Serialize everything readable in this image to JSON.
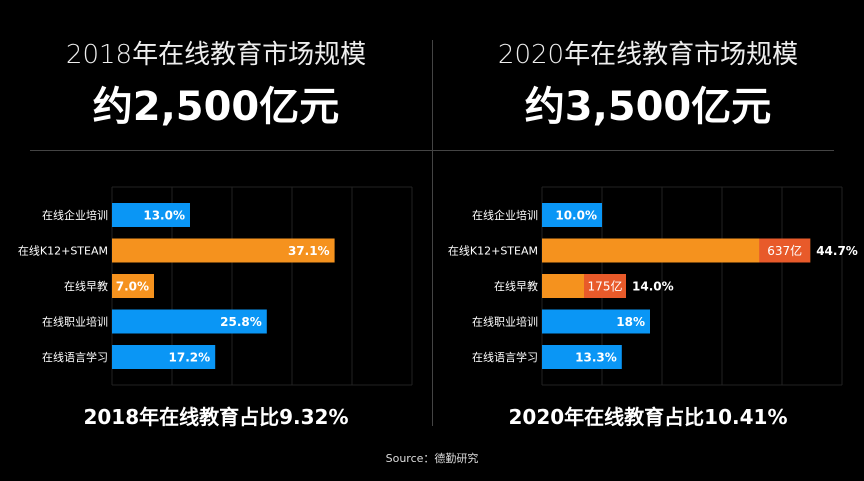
{
  "colors": {
    "blue": "#0a96f5",
    "orange": "#f5921e",
    "red": "#e85a2a",
    "grid": "#222222"
  },
  "panels": [
    {
      "title": "2018年在线教育市场规模",
      "big": "约2,500亿元",
      "foot": "2018年在线教育占比9.32%"
    },
    {
      "title": "2020年在线教育市场规模",
      "big": "约3,500亿元",
      "foot": "2020年在线教育占比10.41%"
    }
  ],
  "source": "Source：德勤研究",
  "chart_data": [
    {
      "type": "bar",
      "orientation": "horizontal",
      "xlim": [
        0,
        50
      ],
      "grid": true,
      "categories": [
        "在线企业培训",
        "在线K12+STEAM",
        "在线早教",
        "在线职业培训",
        "在线语言学习"
      ],
      "values": [
        13.0,
        37.1,
        7.0,
        25.8,
        17.2
      ],
      "labels": [
        "13.0%",
        "37.1%",
        "7.0%",
        "25.8%",
        "17.2%"
      ],
      "bar_colors": [
        "blue",
        "orange",
        "orange",
        "blue",
        "blue"
      ]
    },
    {
      "type": "bar",
      "orientation": "horizontal",
      "xlim": [
        0,
        50
      ],
      "grid": true,
      "categories": [
        "在线企业培训",
        "在线K12+STEAM",
        "在线早教",
        "在线职业培训",
        "在线语言学习"
      ],
      "values": [
        10.0,
        44.7,
        14.0,
        18,
        13.3
      ],
      "labels": [
        "10.0%",
        "44.7%",
        "14.0%",
        "18%",
        "13.3%"
      ],
      "bar_colors": [
        "blue",
        "orange",
        "orange",
        "blue",
        "blue"
      ],
      "increments": [
        null,
        {
          "value": 8.5,
          "label": "637亿"
        },
        {
          "value": 7.0,
          "label": "175亿"
        },
        null,
        null
      ]
    }
  ]
}
